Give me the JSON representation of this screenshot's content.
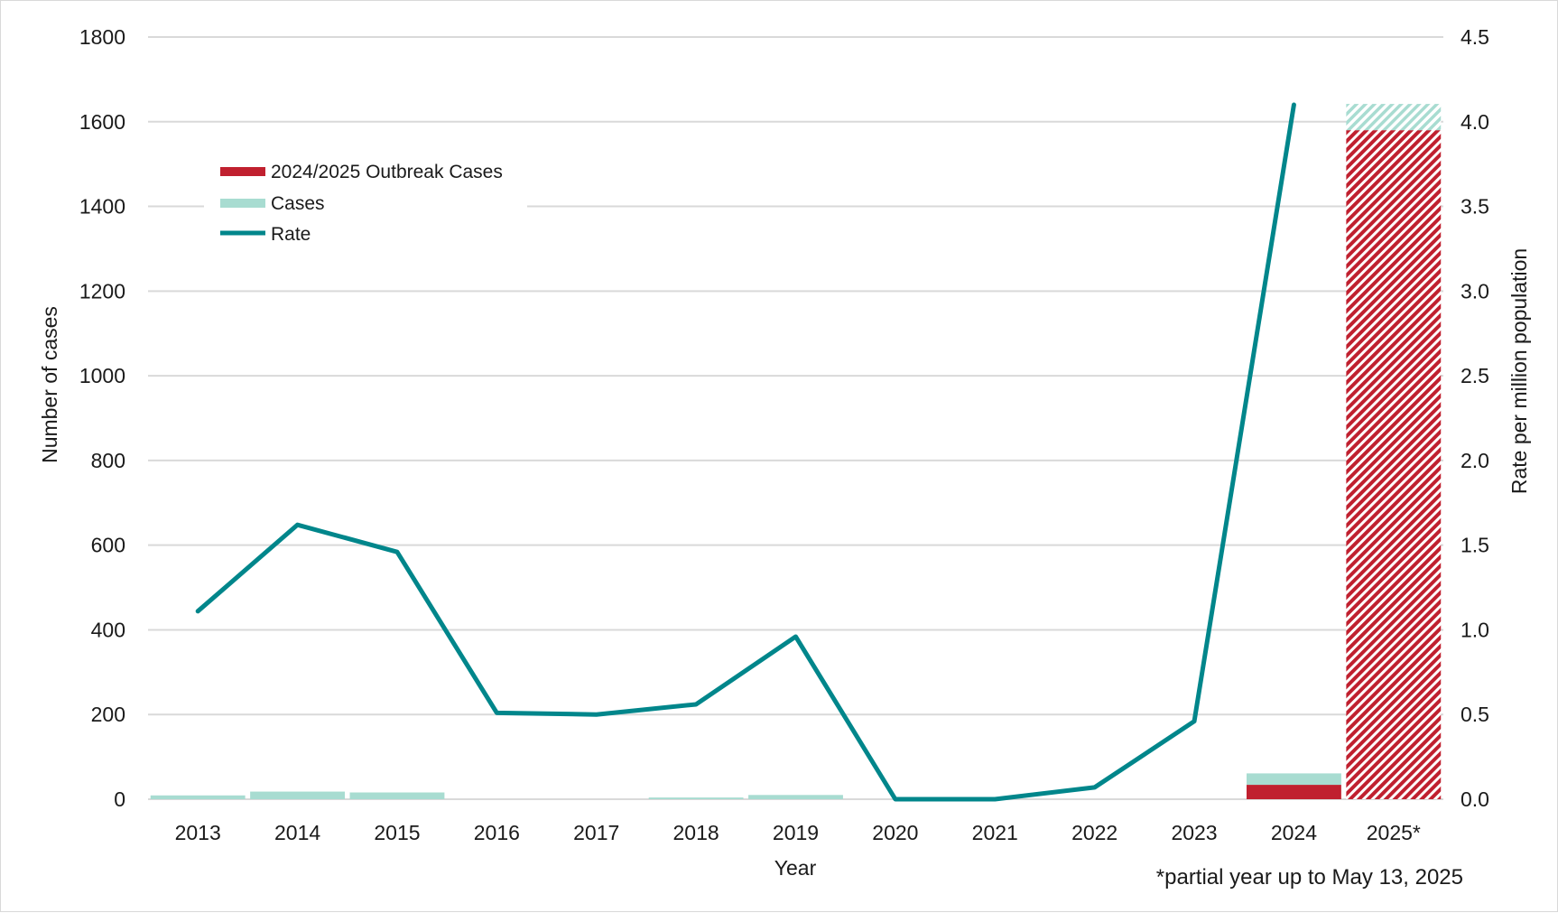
{
  "chart_data": {
    "type": "bar",
    "categories": [
      "2013",
      "2014",
      "2015",
      "2016",
      "2017",
      "2018",
      "2019",
      "2020",
      "2021",
      "2022",
      "2023",
      "2024",
      "2025*"
    ],
    "xlabel": "Year",
    "ylabel": "Number of cases",
    "y2label": "Rate per million population",
    "ylim": [
      0,
      1800
    ],
    "yticks": [
      "0",
      "200",
      "400",
      "600",
      "800",
      "1000",
      "1200",
      "1400",
      "1600",
      "1800"
    ],
    "y2lim": [
      0,
      4.5
    ],
    "y2ticks": [
      "0.0",
      "0.5",
      "1.0",
      "1.5",
      "2.0",
      "2.5",
      "3.0",
      "3.5",
      "4.0",
      "4.5"
    ],
    "grid": true,
    "legend_position": "top-left",
    "series": [
      {
        "name": "2024/2025 Outbreak Cases",
        "kind": "bar",
        "color": "#c0202f",
        "values": [
          0,
          0,
          0,
          0,
          0,
          0,
          0,
          0,
          0,
          0,
          0,
          34,
          1580
        ]
      },
      {
        "name": "Cases",
        "kind": "bar",
        "color": "#a8dcd1",
        "values": [
          9,
          18,
          16,
          0,
          0,
          4,
          10,
          0,
          0,
          0,
          0,
          27,
          62
        ]
      },
      {
        "name": "Rate",
        "kind": "line",
        "axis": "right",
        "color": "#00868b",
        "values": [
          1.11,
          1.62,
          1.46,
          0.51,
          0.5,
          0.56,
          0.96,
          0.0,
          0.0,
          0.07,
          0.46,
          4.1,
          null
        ]
      }
    ],
    "hatched_categories": [
      "2025*"
    ],
    "note": "*partial year up to May 13, 2025"
  }
}
